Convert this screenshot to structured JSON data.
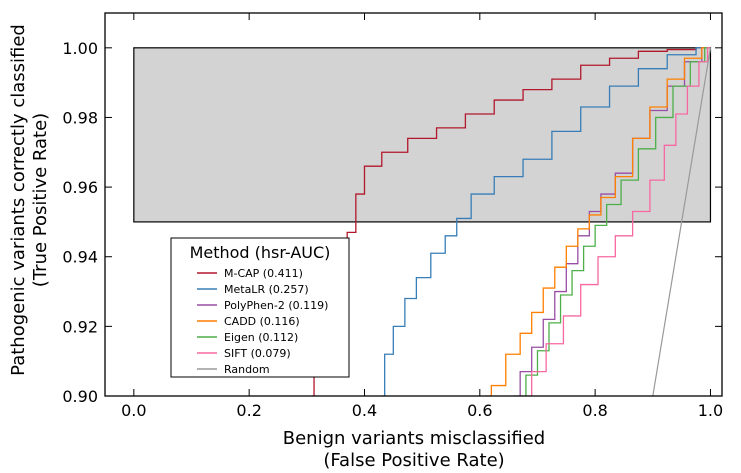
{
  "chart_data": {
    "type": "line",
    "title": "",
    "xlabel": "Benign variants misclassified",
    "xlabel2": "(False Positive Rate)",
    "ylabel": "Pathogenic variants correctly classified",
    "ylabel2": "(True Positive Rate)",
    "xlim": [
      -0.05,
      1.02
    ],
    "ylim": [
      0.9,
      1.01
    ],
    "xticks": [
      0.0,
      0.2,
      0.4,
      0.6,
      0.8,
      1.0
    ],
    "xtick_labels": [
      "0.0",
      "0.2",
      "0.4",
      "0.6",
      "0.8",
      "1.0"
    ],
    "yticks": [
      0.9,
      0.92,
      0.94,
      0.96,
      0.98,
      1.0
    ],
    "ytick_labels": [
      "0.90",
      "0.92",
      "0.94",
      "0.96",
      "0.98",
      "1.00"
    ],
    "shaded_region": {
      "x": [
        0.0,
        1.0
      ],
      "y": [
        0.95,
        1.0
      ],
      "color": "#d3d3d3"
    },
    "legend": {
      "title": "Method (hsr-AUC)",
      "placement": "lower-left"
    },
    "series": [
      {
        "name": "M-CAP (0.411)",
        "color": "#b2182b",
        "x": [
          0.31,
          0.315,
          0.33,
          0.36,
          0.38,
          0.39,
          0.41,
          0.45,
          0.5,
          0.55,
          0.6,
          0.65,
          0.7,
          0.75,
          0.8,
          0.85,
          0.9,
          0.95,
          1.0
        ],
        "y": [
          0.9,
          0.932,
          0.937,
          0.942,
          0.947,
          0.958,
          0.966,
          0.97,
          0.974,
          0.977,
          0.981,
          0.985,
          0.988,
          0.991,
          0.995,
          0.997,
          0.999,
          0.9995,
          1.0
        ]
      },
      {
        "name": "MetaLR (0.257)",
        "color": "#377eb8",
        "x": [
          0.43,
          0.44,
          0.46,
          0.48,
          0.5,
          0.53,
          0.55,
          0.57,
          0.6,
          0.65,
          0.7,
          0.75,
          0.8,
          0.85,
          0.9,
          0.95,
          1.0
        ],
        "y": [
          0.9,
          0.912,
          0.92,
          0.928,
          0.934,
          0.941,
          0.946,
          0.951,
          0.958,
          0.963,
          0.968,
          0.976,
          0.983,
          0.989,
          0.994,
          0.998,
          1.0
        ]
      },
      {
        "name": "PolyPhen-2 (0.119)",
        "color": "#984ea3",
        "x": [
          0.66,
          0.68,
          0.7,
          0.72,
          0.74,
          0.76,
          0.78,
          0.8,
          0.82,
          0.85,
          0.88,
          0.91,
          0.94,
          0.97,
          1.0
        ],
        "y": [
          0.9,
          0.907,
          0.914,
          0.922,
          0.93,
          0.938,
          0.946,
          0.953,
          0.958,
          0.964,
          0.974,
          0.982,
          0.989,
          0.996,
          1.0
        ]
      },
      {
        "name": "CADD (0.116)",
        "color": "#ff7f00",
        "x": [
          0.61,
          0.63,
          0.66,
          0.68,
          0.7,
          0.72,
          0.74,
          0.76,
          0.78,
          0.8,
          0.82,
          0.85,
          0.88,
          0.91,
          0.94,
          0.97,
          1.0
        ],
        "y": [
          0.9,
          0.903,
          0.912,
          0.918,
          0.924,
          0.931,
          0.937,
          0.943,
          0.948,
          0.952,
          0.957,
          0.963,
          0.974,
          0.983,
          0.991,
          0.997,
          1.0
        ]
      },
      {
        "name": "Eigen (0.112)",
        "color": "#4daf4a",
        "x": [
          0.67,
          0.69,
          0.71,
          0.73,
          0.75,
          0.77,
          0.79,
          0.81,
          0.83,
          0.86,
          0.89,
          0.92,
          0.95,
          0.98,
          1.0
        ],
        "y": [
          0.9,
          0.906,
          0.913,
          0.921,
          0.929,
          0.936,
          0.943,
          0.949,
          0.955,
          0.962,
          0.971,
          0.98,
          0.989,
          0.996,
          1.0
        ]
      },
      {
        "name": "SIFT (0.079)",
        "color": "#f768a1",
        "x": [
          0.68,
          0.7,
          0.73,
          0.76,
          0.79,
          0.82,
          0.85,
          0.88,
          0.91,
          0.93,
          0.95,
          0.97,
          0.99,
          1.0
        ],
        "y": [
          0.9,
          0.907,
          0.915,
          0.923,
          0.932,
          0.94,
          0.946,
          0.953,
          0.962,
          0.972,
          0.981,
          0.989,
          0.996,
          1.0
        ]
      },
      {
        "name": "Random",
        "color": "#999999",
        "x": [
          0.9,
          1.0
        ],
        "y": [
          0.9,
          1.0
        ]
      }
    ]
  }
}
